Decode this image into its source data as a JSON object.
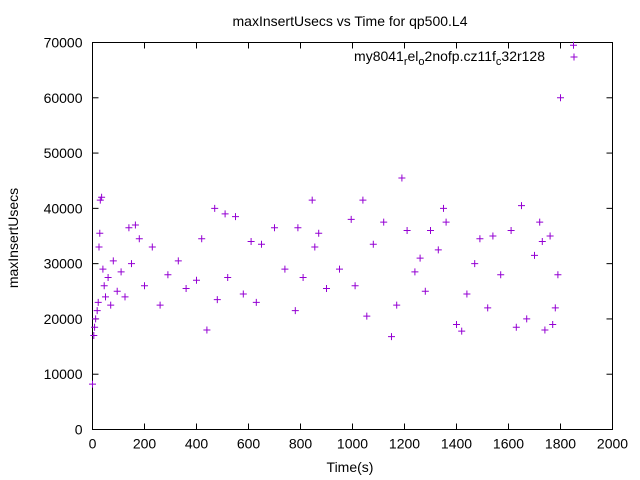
{
  "chart_data": {
    "type": "scatter",
    "title": "maxInsertUsecs vs Time for qp500.L4",
    "xlabel": "Time(s)",
    "ylabel": "maxInsertUsecs",
    "xlim": [
      0,
      2000
    ],
    "ylim": [
      0,
      70000
    ],
    "x_ticks": [
      "0",
      "200",
      "400",
      "600",
      "800",
      "1000",
      "1200",
      "1400",
      "1600",
      "1800",
      "2000"
    ],
    "y_ticks": [
      "0",
      "10000",
      "20000",
      "30000",
      "40000",
      "50000",
      "60000",
      "70000"
    ],
    "grid": false,
    "legend_position": "top-right",
    "legend": {
      "base1": "my8041",
      "sub1": "r",
      "base2": "el",
      "sub2": "o",
      "base3": "2nofp.cz11f",
      "sub3": "c",
      "base4": "32r128"
    },
    "marker": "+",
    "series_color": "#9400d3",
    "series": [
      {
        "points": [
          [
            0,
            8200
          ],
          [
            5,
            17000
          ],
          [
            8,
            18500
          ],
          [
            12,
            20000
          ],
          [
            18,
            21500
          ],
          [
            22,
            23000
          ],
          [
            25,
            33000
          ],
          [
            28,
            35500
          ],
          [
            30,
            41500
          ],
          [
            35,
            42000
          ],
          [
            40,
            29000
          ],
          [
            45,
            26000
          ],
          [
            50,
            24000
          ],
          [
            60,
            27500
          ],
          [
            70,
            22500
          ],
          [
            80,
            30500
          ],
          [
            95,
            25000
          ],
          [
            110,
            28500
          ],
          [
            125,
            24000
          ],
          [
            140,
            36500
          ],
          [
            150,
            30000
          ],
          [
            165,
            37000
          ],
          [
            180,
            34500
          ],
          [
            200,
            26000
          ],
          [
            230,
            33000
          ],
          [
            260,
            22500
          ],
          [
            290,
            28000
          ],
          [
            330,
            30500
          ],
          [
            360,
            25500
          ],
          [
            400,
            27000
          ],
          [
            420,
            34500
          ],
          [
            440,
            18000
          ],
          [
            470,
            40000
          ],
          [
            480,
            23500
          ],
          [
            510,
            39000
          ],
          [
            520,
            27500
          ],
          [
            550,
            38500
          ],
          [
            580,
            24500
          ],
          [
            610,
            34000
          ],
          [
            630,
            23000
          ],
          [
            650,
            33500
          ],
          [
            700,
            36500
          ],
          [
            740,
            29000
          ],
          [
            780,
            21500
          ],
          [
            790,
            36500
          ],
          [
            810,
            27500
          ],
          [
            845,
            41500
          ],
          [
            855,
            33000
          ],
          [
            870,
            35500
          ],
          [
            900,
            25500
          ],
          [
            950,
            29000
          ],
          [
            995,
            38000
          ],
          [
            1010,
            26000
          ],
          [
            1040,
            41500
          ],
          [
            1055,
            20500
          ],
          [
            1080,
            33500
          ],
          [
            1120,
            37500
          ],
          [
            1150,
            16800
          ],
          [
            1170,
            22500
          ],
          [
            1190,
            45500
          ],
          [
            1210,
            36000
          ],
          [
            1240,
            28500
          ],
          [
            1260,
            31000
          ],
          [
            1280,
            25000
          ],
          [
            1300,
            36000
          ],
          [
            1330,
            32500
          ],
          [
            1350,
            40000
          ],
          [
            1360,
            37500
          ],
          [
            1400,
            19000
          ],
          [
            1420,
            17800
          ],
          [
            1440,
            24500
          ],
          [
            1470,
            30000
          ],
          [
            1490,
            34500
          ],
          [
            1520,
            22000
          ],
          [
            1540,
            35000
          ],
          [
            1570,
            28000
          ],
          [
            1610,
            36000
          ],
          [
            1630,
            18500
          ],
          [
            1650,
            40500
          ],
          [
            1670,
            20000
          ],
          [
            1700,
            31500
          ],
          [
            1720,
            37500
          ],
          [
            1730,
            34000
          ],
          [
            1740,
            18000
          ],
          [
            1760,
            35000
          ],
          [
            1770,
            19000
          ],
          [
            1780,
            22000
          ],
          [
            1790,
            28000
          ],
          [
            1800,
            60000
          ],
          [
            1850,
            69500
          ]
        ]
      }
    ]
  }
}
